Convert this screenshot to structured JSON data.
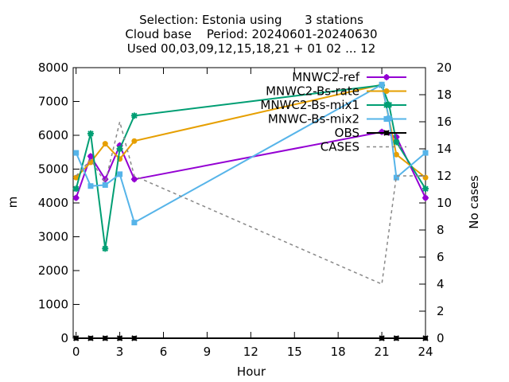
{
  "chart_data": {
    "type": "line",
    "title_lines": [
      "Selection: Estonia using      3 stations",
      "Cloud base    Period: 20240601-20240630",
      "Used 00,03,09,12,15,18,21 + 01 02 ... 12"
    ],
    "xlabel": "Hour",
    "ylabel": "m",
    "y2label": "No cases",
    "xlim": [
      -0.2,
      24
    ],
    "ylim": [
      0,
      8000
    ],
    "y2lim": [
      0,
      20
    ],
    "xticks": [
      "0",
      "3",
      "6",
      "9",
      "12",
      "15",
      "18",
      "21",
      "24"
    ],
    "yticks": [
      "0",
      "1000",
      "2000",
      "3000",
      "4000",
      "5000",
      "6000",
      "7000",
      "8000"
    ],
    "y2ticks": [
      "0",
      "2",
      "4",
      "6",
      "8",
      "10",
      "12",
      "14",
      "16",
      "18",
      "20"
    ],
    "grid": false,
    "legend_position": "top-right",
    "series": [
      {
        "name": "MNWC2-ref",
        "color": "#9400d3",
        "marker": "plus",
        "axis": "y",
        "points": [
          [
            0,
            4150
          ],
          [
            1,
            5380
          ],
          [
            2,
            4700
          ],
          [
            3,
            5700
          ],
          [
            4,
            4700
          ],
          [
            21,
            6100
          ],
          [
            22,
            5950
          ],
          [
            24,
            4150
          ]
        ]
      },
      {
        "name": "MNWC2-Bs-rate",
        "color": "#e69f00",
        "marker": "circle",
        "axis": "y",
        "points": [
          [
            0,
            4750
          ],
          [
            1,
            5200
          ],
          [
            2,
            5750
          ],
          [
            3,
            5300
          ],
          [
            4,
            5830
          ],
          [
            21,
            7500
          ],
          [
            22,
            5430
          ],
          [
            24,
            4750
          ]
        ]
      },
      {
        "name": "MNWC2-Bs-mix1",
        "color": "#009e73",
        "marker": "star",
        "axis": "y",
        "points": [
          [
            0,
            4420
          ],
          [
            1,
            6050
          ],
          [
            2,
            2650
          ],
          [
            3,
            5600
          ],
          [
            4,
            6580
          ],
          [
            21,
            7480
          ],
          [
            21.5,
            6900
          ],
          [
            22,
            5800
          ],
          [
            24,
            4420
          ]
        ]
      },
      {
        "name": "MNWC-Bs-mix2",
        "color": "#56b4e9",
        "marker": "square",
        "axis": "y",
        "points": [
          [
            0,
            5480
          ],
          [
            1,
            4500
          ],
          [
            2,
            4530
          ],
          [
            3,
            4850
          ],
          [
            4,
            3420
          ],
          [
            21,
            7500
          ],
          [
            21.5,
            6500
          ],
          [
            22,
            4750
          ],
          [
            24,
            5480
          ]
        ]
      },
      {
        "name": "OBS",
        "color": "#000000",
        "marker": "cross",
        "axis": "y",
        "points": [
          [
            0,
            0
          ],
          [
            1,
            0
          ],
          [
            2,
            0
          ],
          [
            3,
            0
          ],
          [
            4,
            0
          ],
          [
            21,
            0
          ],
          [
            22,
            0
          ],
          [
            24,
            0
          ]
        ]
      },
      {
        "name": "CASES",
        "color": "#888888",
        "marker": "none",
        "dashed": true,
        "axis": "y2",
        "points": [
          [
            0,
            12
          ],
          [
            1,
            13.2
          ],
          [
            2,
            11.5
          ],
          [
            3,
            16
          ],
          [
            4,
            12
          ],
          [
            21,
            4
          ],
          [
            22,
            12
          ],
          [
            24,
            12
          ]
        ]
      }
    ]
  }
}
